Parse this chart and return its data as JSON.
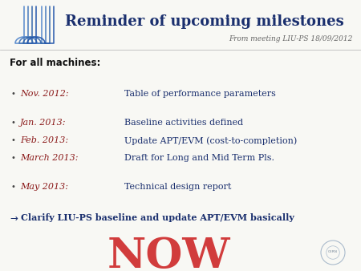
{
  "title": "Reminder of upcoming milestones",
  "subtitle": "From meeting LIU-PS 18/09/2012",
  "bg_color": "#f8f8f4",
  "title_color": "#1a2f6e",
  "subtitle_color": "#666666",
  "header_label": "For all machines:",
  "header_color": "#111111",
  "date_color": "#8b1a1a",
  "text_color": "#1a2f6e",
  "now_color": "#cc2222",
  "arrow_color": "#1a2f6e",
  "bullet_color": "#444444",
  "items": [
    {
      "date": "Nov. 2012:",
      "desc": "Table of performance parameters",
      "gap_before": true
    },
    {
      "date": "Jan. 2013:",
      "desc": "Baseline activities defined",
      "gap_before": true
    },
    {
      "date": "Feb. 2013:",
      "desc": "Update APT/EVM (cost-to-completion)",
      "gap_before": false
    },
    {
      "date": "March 2013:",
      "desc": "Draft for Long and Mid Term Pls.",
      "gap_before": false
    },
    {
      "date": "May 2013:",
      "desc": "Technical design report",
      "gap_before": true
    }
  ],
  "clarify_text": "Clarify LIU-PS baseline and update APT/EVM basically",
  "now_text": "NOW",
  "logo_U_color": "#4a7abf",
  "line_color": "#bbbbbb"
}
